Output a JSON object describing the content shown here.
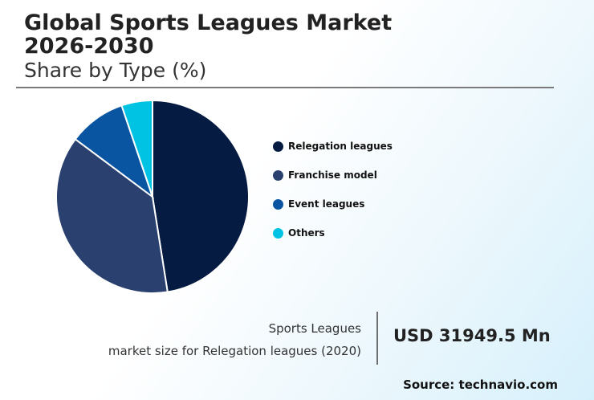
{
  "header": {
    "title_line1": "Global Sports Leagues Market",
    "title_line2": "2026-2030",
    "subtitle": "Share by Type (%)"
  },
  "chart_data": {
    "type": "pie",
    "categories": [
      "Relegation leagues",
      "Franchise model",
      "Event leagues",
      "Others"
    ],
    "values": [
      47.5,
      37.7,
      9.6,
      5.2
    ],
    "colors": [
      "#061b41",
      "#2a416f",
      "#0a55a2",
      "#00c3e3"
    ],
    "legend_position": "right"
  },
  "market": {
    "label_line1": "Sports Leagues",
    "label_line2": "market size for Relegation leagues (2020)",
    "value": "USD 31949.5 Mn"
  },
  "source": "Source: technavio.com"
}
